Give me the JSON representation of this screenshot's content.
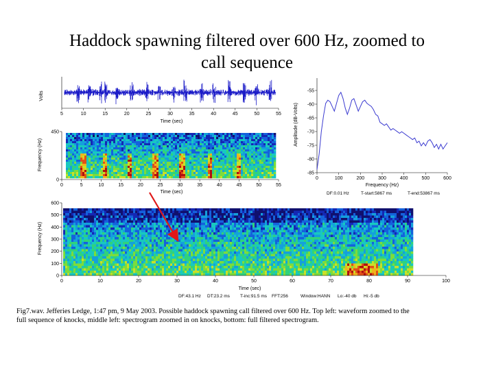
{
  "slide": {
    "title_line1": "Haddock spawning filtered over 600 Hz, zoomed to",
    "title_line2": "call sequence",
    "caption_line1": "Fig7.wav.  Jefferies Ledge, 1:47 pm, 9 May 2003.  Possible haddock spawning call filtered over 600 Hz. Top left: waveform zoomed to the",
    "caption_line2": "full sequence of knocks, middle left: spectrogram zoomed in on knocks, bottom: full filtered spectrogram."
  },
  "colors": {
    "waveform": "#1c1cc8",
    "spectrum_line": "#3a3ad0",
    "arrow": "#e01818",
    "spectrogram_low": "#1010a0",
    "spectrogram_mid": "#14c8c8",
    "spectrogram_high": "#c82010"
  },
  "chart_data": [
    {
      "id": "waveform",
      "type": "line",
      "xlabel": "Time (sec)",
      "ylabel": "Volts",
      "xlim": [
        5,
        55
      ],
      "xticks": [
        "5",
        "10",
        "15",
        "20",
        "25",
        "30",
        "35",
        "40",
        "45",
        "50",
        "55"
      ],
      "note": "dense waveform trace with knock pulses"
    },
    {
      "id": "spectrum",
      "type": "line",
      "xlabel": "Frequency (Hz)",
      "ylabel": "Amplitude (dB-Volts)",
      "xlim": [
        0,
        600
      ],
      "ylim": [
        -85,
        -55
      ],
      "xticks": [
        "0",
        "100",
        "200",
        "300",
        "400",
        "500",
        "600"
      ],
      "yticks": [
        "-55",
        "-60",
        "-65",
        "-70",
        "-75",
        "-80",
        "-85"
      ],
      "footer": [
        "DF:0.01 Hz",
        "T-start:5867 ms",
        "T-end:53867 ms"
      ],
      "x": [
        0,
        10,
        20,
        30,
        40,
        50,
        60,
        70,
        80,
        90,
        100,
        110,
        120,
        130,
        140,
        150,
        160,
        170,
        180,
        190,
        200,
        210,
        220,
        230,
        240,
        250,
        260,
        270,
        280,
        290,
        300,
        310,
        320,
        330,
        340,
        350,
        360,
        370,
        380,
        390,
        400,
        410,
        420,
        430,
        440,
        450,
        460,
        470,
        480,
        490,
        500,
        510,
        520,
        530,
        540,
        550,
        560,
        570,
        580,
        590,
        600
      ],
      "y": [
        -84,
        -79,
        -72,
        -67,
        -63,
        -62,
        -62.5,
        -64,
        -65.5,
        -63,
        -60.5,
        -59.5,
        -61.5,
        -64.5,
        -66.5,
        -64.5,
        -62,
        -61.5,
        -63.5,
        -65.5,
        -64,
        -62.5,
        -62,
        -63,
        -63.5,
        -64,
        -65,
        -66.5,
        -67,
        -69,
        -69.5,
        -70,
        -69.5,
        -70.5,
        -71.5,
        -71,
        -71.5,
        -72,
        -72.5,
        -72,
        -72.5,
        -73,
        -73.5,
        -74,
        -74.5,
        -74,
        -75.5,
        -75,
        -76.5,
        -75.5,
        -76.5,
        -75,
        -74.5,
        -75.5,
        -77,
        -76,
        -77.5,
        -76,
        -77.5,
        -76.5,
        -75.5
      ]
    },
    {
      "id": "spectrogram_zoom",
      "type": "heatmap",
      "xlabel": "Time (sec)",
      "ylabel": "Frequency (Hz)",
      "xlim": [
        5,
        55
      ],
      "ylim": [
        0,
        450
      ],
      "xticks": [
        "0",
        "5",
        "10",
        "15",
        "20",
        "25",
        "30",
        "35",
        "40",
        "45",
        "50",
        "55"
      ],
      "yticks": [
        "0",
        "450"
      ]
    },
    {
      "id": "spectrogram_full",
      "type": "heatmap",
      "xlabel": "Time (sec)",
      "ylabel": "Frequency (Hz)",
      "xlim": [
        0,
        100
      ],
      "ylim": [
        0,
        600
      ],
      "xticks": [
        "0",
        "10",
        "20",
        "30",
        "40",
        "50",
        "60",
        "70",
        "80",
        "90",
        "100"
      ],
      "yticks": [
        "0",
        "100",
        "200",
        "300",
        "400",
        "500",
        "600"
      ],
      "footer": [
        "DF:43.1 Hz",
        "DT:23.2 ms",
        "T-inc:91.5 ms",
        "FFT:256",
        "Window:HANN",
        "Lo:-40 db",
        "Hi:-5 db"
      ]
    }
  ]
}
